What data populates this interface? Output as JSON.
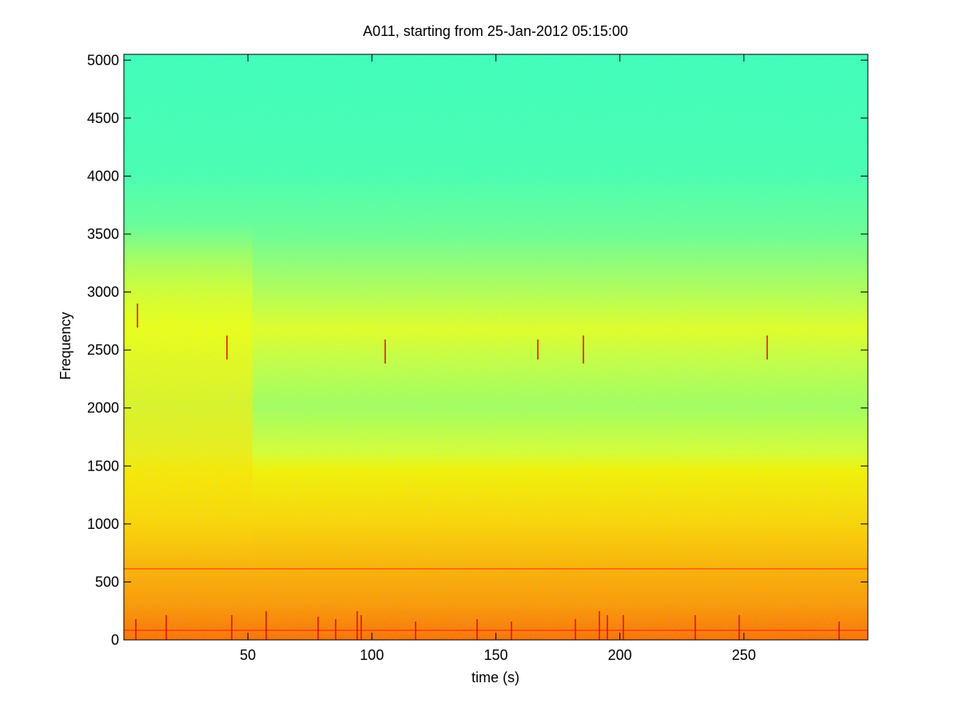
{
  "chart_data": {
    "type": "spectrogram",
    "title": "A011, starting from 25-Jan-2012 05:15:00",
    "x_label": "time (s)",
    "y_label": "Frequency",
    "xlim": [
      0,
      300
    ],
    "xticks": [
      50,
      100,
      150,
      200,
      250
    ],
    "ylim": [
      0,
      5050
    ],
    "yticks": [
      0,
      500,
      1000,
      1500,
      2000,
      2500,
      3000,
      3500,
      4000,
      4500,
      5000
    ]
  }
}
